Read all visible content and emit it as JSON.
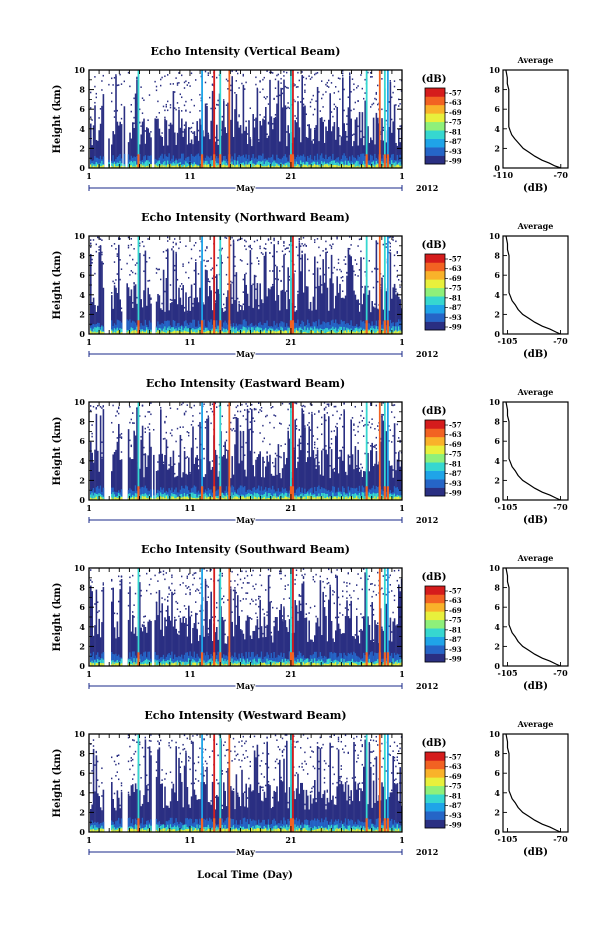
{
  "figure": {
    "bottom_xlabel": "Local Time (Day)"
  },
  "colorbar": {
    "unit": "(dB)",
    "ticks": [
      "-57",
      "-63",
      "-69",
      "-75",
      "-81",
      "-87",
      "-93",
      "-99"
    ],
    "colors": [
      "#2a2f82",
      "#2565c7",
      "#1fa4e8",
      "#36d7d0",
      "#8ef07a",
      "#e8f03c",
      "#f9b22a",
      "#f26222",
      "#d51c1c"
    ]
  },
  "chart_data": [
    {
      "type": "heatmap",
      "title": "Echo Intensity (Vertical Beam)",
      "ylabel": "Height (km)",
      "ylim": [
        0,
        10
      ],
      "yticks": [
        "0",
        "2",
        "4",
        "6",
        "8",
        "10"
      ],
      "xlim": [
        1,
        32
      ],
      "xticks": [
        "1",
        "11",
        "21",
        "1"
      ],
      "xlabel_month": "May",
      "xlabel_year": "2012",
      "colorbar_label": "(dB)",
      "colorbar_range": [
        -99,
        -57
      ],
      "average_profile": {
        "title": "Average",
        "xlabel": "(dB)",
        "xticks": [
          "-110",
          "-70"
        ],
        "xlim": [
          -110,
          -65
        ],
        "yticks": [
          "0",
          "2",
          "4",
          "6",
          "8",
          "10"
        ],
        "height_km": [
          0,
          0.2,
          0.5,
          0.8,
          1.2,
          1.6,
          2.0,
          2.5,
          3.0,
          3.4,
          3.8,
          4.2,
          5.0,
          6.0,
          7.0,
          8.0,
          8.6,
          9.2,
          10
        ],
        "db": [
          -70,
          -74,
          -78,
          -83,
          -88,
          -92,
          -96,
          -99,
          -102,
          -104,
          -105,
          -106,
          -106,
          -106,
          -106,
          -106,
          -107,
          -107,
          -108
        ]
      }
    },
    {
      "type": "heatmap",
      "title": "Echo Intensity (Northward Beam)",
      "ylabel": "Height (km)",
      "ylim": [
        0,
        10
      ],
      "yticks": [
        "0",
        "2",
        "4",
        "6",
        "8",
        "10"
      ],
      "xlim": [
        1,
        32
      ],
      "xticks": [
        "1",
        "11",
        "21",
        "1"
      ],
      "xlabel_month": "May",
      "xlabel_year": "2012",
      "colorbar_label": "(dB)",
      "colorbar_range": [
        -99,
        -57
      ],
      "average_profile": {
        "title": "Average",
        "xlabel": "(dB)",
        "xticks": [
          "-105",
          "-70"
        ],
        "xlim": [
          -108,
          -65
        ],
        "yticks": [
          "0",
          "2",
          "4",
          "6",
          "8",
          "10"
        ],
        "height_km": [
          0,
          0.2,
          0.5,
          0.8,
          1.2,
          1.6,
          2.0,
          2.5,
          3.0,
          3.4,
          3.8,
          4.2,
          5.0,
          6.0,
          7.0,
          8.0,
          8.6,
          9.2,
          10
        ],
        "db": [
          -70,
          -73,
          -77,
          -82,
          -87,
          -91,
          -95,
          -98,
          -100,
          -102,
          -103,
          -104,
          -104,
          -104,
          -104,
          -104,
          -105,
          -105,
          -106
        ]
      }
    },
    {
      "type": "heatmap",
      "title": "Echo Intensity (Eastward Beam)",
      "ylabel": "Height (km)",
      "ylim": [
        0,
        10
      ],
      "yticks": [
        "0",
        "2",
        "4",
        "6",
        "8",
        "10"
      ],
      "xlim": [
        1,
        32
      ],
      "xticks": [
        "1",
        "11",
        "21",
        "1"
      ],
      "xlabel_month": "May",
      "xlabel_year": "2012",
      "colorbar_label": "(dB)",
      "colorbar_range": [
        -99,
        -57
      ],
      "average_profile": {
        "title": "Average",
        "xlabel": "(dB)",
        "xticks": [
          "-105",
          "-70"
        ],
        "xlim": [
          -108,
          -65
        ],
        "yticks": [
          "0",
          "2",
          "4",
          "6",
          "8",
          "10"
        ],
        "height_km": [
          0,
          0.2,
          0.5,
          0.8,
          1.2,
          1.6,
          2.0,
          2.5,
          3.0,
          3.4,
          3.8,
          4.2,
          5.0,
          6.0,
          7.0,
          8.0,
          8.6,
          9.2,
          10
        ],
        "db": [
          -70,
          -73,
          -77,
          -82,
          -87,
          -91,
          -95,
          -98,
          -100,
          -102,
          -103,
          -104,
          -104,
          -104,
          -104,
          -104,
          -105,
          -105,
          -106
        ]
      }
    },
    {
      "type": "heatmap",
      "title": "Echo Intensity (Southward Beam)",
      "ylabel": "Height (km)",
      "ylim": [
        0,
        10
      ],
      "yticks": [
        "0",
        "2",
        "4",
        "6",
        "8",
        "10"
      ],
      "xlim": [
        1,
        32
      ],
      "xticks": [
        "1",
        "11",
        "21",
        "1"
      ],
      "xlabel_month": "May",
      "xlabel_year": "2012",
      "colorbar_label": "(dB)",
      "colorbar_range": [
        -99,
        -57
      ],
      "average_profile": {
        "title": "Average",
        "xlabel": "(dB)",
        "xticks": [
          "-105",
          "-70"
        ],
        "xlim": [
          -108,
          -65
        ],
        "yticks": [
          "0",
          "2",
          "4",
          "6",
          "8",
          "10"
        ],
        "height_km": [
          0,
          0.2,
          0.5,
          0.8,
          1.2,
          1.6,
          2.0,
          2.5,
          3.0,
          3.4,
          3.8,
          4.2,
          5.0,
          6.0,
          7.0,
          8.0,
          8.6,
          9.2,
          10
        ],
        "db": [
          -70,
          -73,
          -77,
          -82,
          -87,
          -91,
          -95,
          -98,
          -100,
          -102,
          -103,
          -104,
          -104,
          -104,
          -104,
          -104,
          -105,
          -105,
          -106
        ]
      }
    },
    {
      "type": "heatmap",
      "title": "Echo Intensity (Westward Beam)",
      "ylabel": "Height (km)",
      "ylim": [
        0,
        10
      ],
      "yticks": [
        "0",
        "2",
        "4",
        "6",
        "8",
        "10"
      ],
      "xlim": [
        1,
        32
      ],
      "xticks": [
        "1",
        "11",
        "21",
        "1"
      ],
      "xlabel_month": "May",
      "xlabel_year": "2012",
      "colorbar_label": "(dB)",
      "colorbar_range": [
        -99,
        -57
      ],
      "average_profile": {
        "title": "Average",
        "xlabel": "(dB)",
        "xticks": [
          "-105",
          "-70"
        ],
        "xlim": [
          -108,
          -65
        ],
        "yticks": [
          "0",
          "2",
          "4",
          "6",
          "8",
          "10"
        ],
        "height_km": [
          0,
          0.2,
          0.5,
          0.8,
          1.2,
          1.6,
          2.0,
          2.5,
          3.0,
          3.4,
          3.8,
          4.2,
          5.0,
          6.0,
          7.0,
          8.0,
          8.6,
          9.2,
          10
        ],
        "db": [
          -70,
          -73,
          -77,
          -82,
          -87,
          -91,
          -95,
          -98,
          -100,
          -102,
          -103,
          -104,
          -104,
          -104,
          -104,
          -104,
          -105,
          -105,
          -106
        ]
      }
    }
  ]
}
